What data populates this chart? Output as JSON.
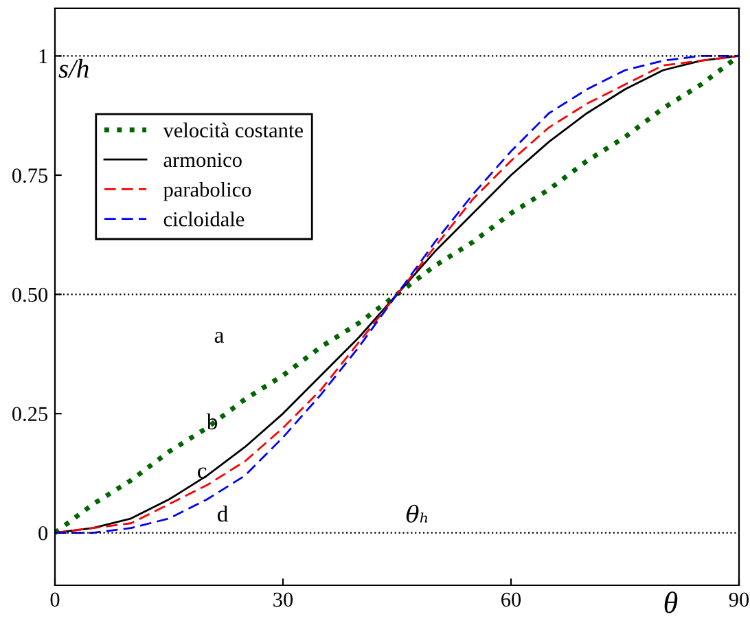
{
  "chart_data": {
    "type": "line",
    "xlabel": "θ",
    "ylabel": "s/h",
    "x": [
      0,
      5,
      10,
      15,
      20,
      25,
      30,
      35,
      40,
      45,
      50,
      55,
      60,
      65,
      70,
      75,
      80,
      85,
      90
    ],
    "series": [
      {
        "name": "velocità costante",
        "color": "#006400",
        "line_style": "dotted",
        "values": [
          0,
          0.06,
          0.11,
          0.17,
          0.22,
          0.28,
          0.33,
          0.39,
          0.44,
          0.5,
          0.56,
          0.61,
          0.67,
          0.72,
          0.78,
          0.83,
          0.89,
          0.94,
          1
        ]
      },
      {
        "name": "armonico",
        "color": "#000000",
        "line_style": "solid",
        "values": [
          0,
          0.01,
          0.03,
          0.07,
          0.12,
          0.18,
          0.25,
          0.33,
          0.41,
          0.5,
          0.59,
          0.67,
          0.75,
          0.82,
          0.88,
          0.93,
          0.97,
          0.99,
          1
        ]
      },
      {
        "name": "parabolico",
        "color": "#ff0000",
        "line_style": "dashed",
        "values": [
          0,
          0.01,
          0.02,
          0.06,
          0.1,
          0.15,
          0.22,
          0.3,
          0.4,
          0.5,
          0.6,
          0.7,
          0.78,
          0.85,
          0.9,
          0.94,
          0.98,
          0.99,
          1
        ]
      },
      {
        "name": "cicloidale",
        "color": "#0000ff",
        "line_style": "dashed",
        "values": [
          0,
          0,
          0.01,
          0.03,
          0.07,
          0.12,
          0.2,
          0.29,
          0.39,
          0.5,
          0.61,
          0.71,
          0.8,
          0.88,
          0.93,
          0.97,
          0.99,
          1,
          1
        ]
      }
    ],
    "xlim": [
      0,
      90
    ],
    "xticks": [
      0,
      30,
      60,
      90
    ],
    "ylim": [
      -0.11,
      1.1
    ],
    "yticks": [
      0,
      0.25,
      {
        "value": 0.5,
        "label": "0.50"
      },
      0.75,
      1
    ],
    "ref_lines": [
      {
        "axis": "y",
        "value": 0,
        "color": "#000000",
        "line_style": "dotted"
      },
      {
        "axis": "y",
        "value": 0.5,
        "color": "#000000",
        "line_style": "dotted"
      },
      {
        "axis": "y",
        "value": 1,
        "color": "#000000",
        "line_style": "dotted"
      }
    ],
    "annotations": [
      "a",
      "b",
      "c",
      "d",
      "θₕ"
    ],
    "legend": "top left",
    "grid": false,
    "marker": "none"
  }
}
